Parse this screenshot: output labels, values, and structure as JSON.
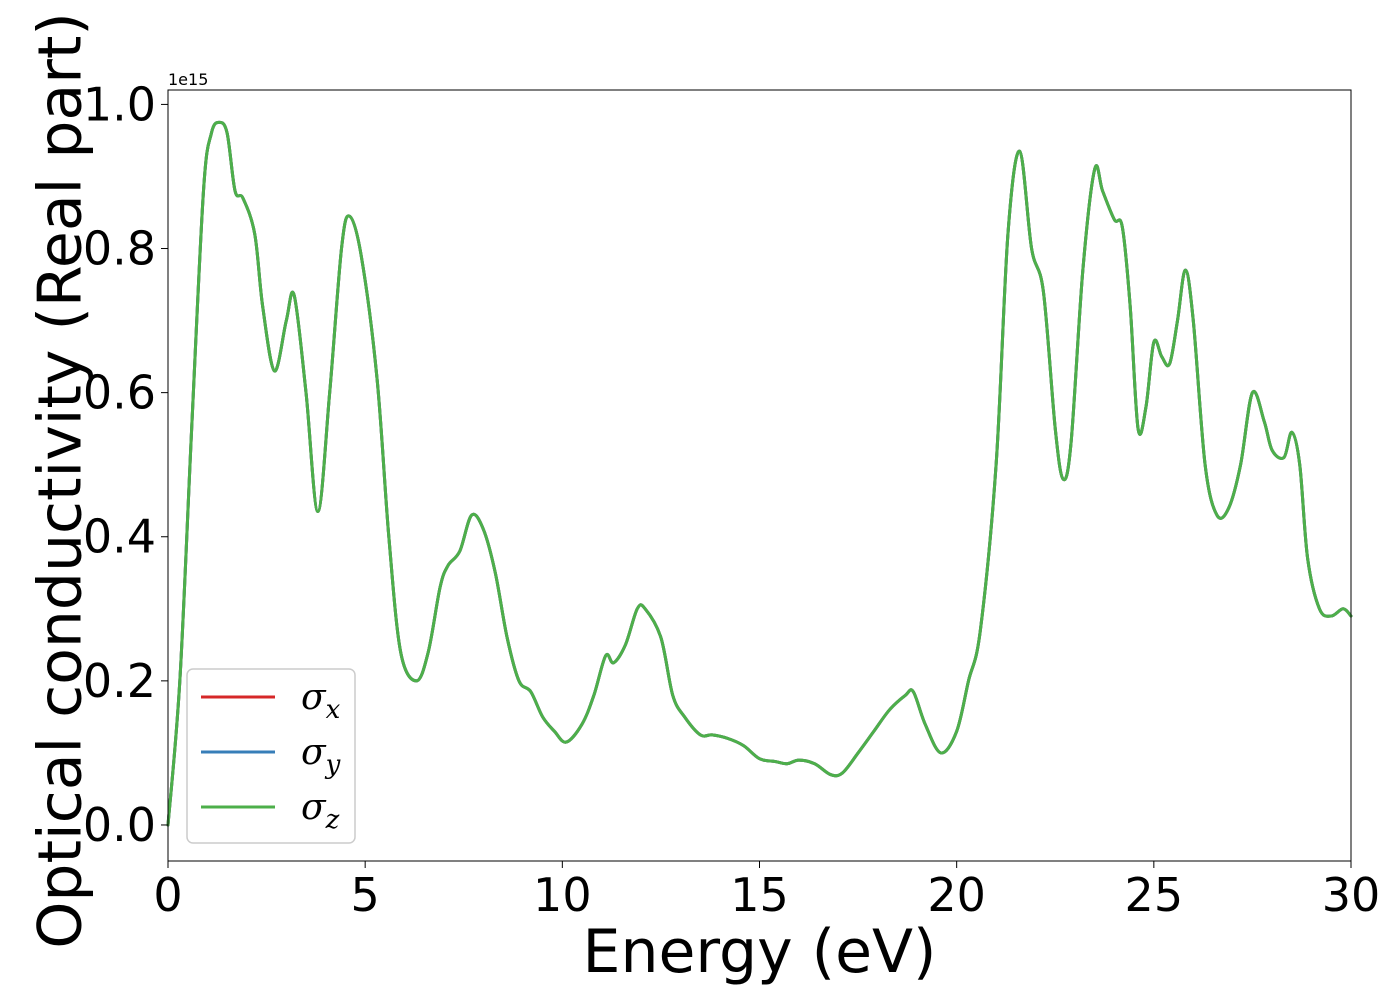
{
  "chart_data": {
    "type": "line",
    "xlabel": "Energy (eV)",
    "ylabel": "Optical conductivity (Real part)",
    "y_offset_text": "1e15",
    "xlim": [
      0,
      30
    ],
    "ylim": [
      -0.05,
      1.02
    ],
    "x_ticks": [
      0,
      5,
      10,
      15,
      20,
      25,
      30
    ],
    "x_tick_labels": [
      "0",
      "5",
      "10",
      "15",
      "20",
      "25",
      "30"
    ],
    "y_ticks": [
      0.0,
      0.2,
      0.4,
      0.6,
      0.8,
      1.0
    ],
    "y_tick_labels": [
      "0.0",
      "0.2",
      "0.4",
      "0.6",
      "0.8",
      "1.0"
    ],
    "grid": false,
    "legend_position": "lower-left",
    "colors": {
      "sigma_x": "#d62728",
      "sigma_y": "#377eb8",
      "sigma_z": "#4daf4a"
    },
    "x": [
      0,
      0.3,
      0.6,
      0.9,
      1.1,
      1.3,
      1.5,
      1.7,
      1.9,
      2.2,
      2.4,
      2.7,
      3.0,
      3.2,
      3.5,
      3.8,
      4.1,
      4.4,
      4.6,
      4.9,
      5.3,
      5.6,
      5.9,
      6.3,
      6.6,
      6.9,
      7.1,
      7.4,
      7.7,
      8.0,
      8.3,
      8.6,
      8.9,
      9.2,
      9.5,
      9.8,
      10.1,
      10.5,
      10.8,
      11.1,
      11.3,
      11.6,
      11.9,
      12.1,
      12.5,
      12.8,
      13.1,
      13.5,
      13.8,
      14.2,
      14.6,
      15.0,
      15.4,
      15.7,
      16.0,
      16.4,
      16.8,
      17.1,
      17.5,
      17.9,
      18.3,
      18.7,
      18.9,
      19.2,
      19.6,
      20.0,
      20.3,
      20.6,
      21.0,
      21.3,
      21.6,
      21.9,
      22.2,
      22.5,
      22.7,
      22.9,
      23.2,
      23.5,
      23.7,
      24.0,
      24.2,
      24.4,
      24.6,
      24.8,
      25.0,
      25.2,
      25.4,
      25.6,
      25.8,
      26.0,
      26.3,
      26.6,
      26.9,
      27.2,
      27.5,
      27.8,
      28.0,
      28.3,
      28.5,
      28.7,
      28.9,
      29.2,
      29.5,
      29.8,
      30.0
    ],
    "series": [
      {
        "name": "σx",
        "color": "#d62728",
        "values": [
          0.0,
          0.2,
          0.55,
          0.88,
          0.96,
          0.975,
          0.96,
          0.88,
          0.87,
          0.82,
          0.72,
          0.63,
          0.7,
          0.735,
          0.6,
          0.435,
          0.6,
          0.8,
          0.845,
          0.79,
          0.62,
          0.4,
          0.24,
          0.2,
          0.24,
          0.33,
          0.36,
          0.38,
          0.43,
          0.41,
          0.35,
          0.26,
          0.2,
          0.185,
          0.15,
          0.13,
          0.115,
          0.14,
          0.18,
          0.235,
          0.225,
          0.25,
          0.3,
          0.3,
          0.26,
          0.18,
          0.15,
          0.125,
          0.125,
          0.12,
          0.11,
          0.092,
          0.088,
          0.085,
          0.09,
          0.085,
          0.07,
          0.072,
          0.1,
          0.13,
          0.16,
          0.18,
          0.185,
          0.14,
          0.1,
          0.13,
          0.2,
          0.27,
          0.5,
          0.82,
          0.935,
          0.8,
          0.74,
          0.55,
          0.48,
          0.53,
          0.77,
          0.91,
          0.88,
          0.84,
          0.83,
          0.72,
          0.55,
          0.58,
          0.67,
          0.65,
          0.64,
          0.7,
          0.77,
          0.7,
          0.5,
          0.43,
          0.44,
          0.5,
          0.6,
          0.56,
          0.52,
          0.51,
          0.545,
          0.5,
          0.37,
          0.3,
          0.29,
          0.3,
          0.29
        ]
      },
      {
        "name": "σy",
        "color": "#377eb8",
        "values": [
          0.0,
          0.2,
          0.55,
          0.88,
          0.96,
          0.975,
          0.96,
          0.88,
          0.87,
          0.82,
          0.72,
          0.63,
          0.7,
          0.735,
          0.6,
          0.435,
          0.6,
          0.8,
          0.845,
          0.79,
          0.62,
          0.4,
          0.24,
          0.2,
          0.24,
          0.33,
          0.36,
          0.38,
          0.43,
          0.41,
          0.35,
          0.26,
          0.2,
          0.185,
          0.15,
          0.13,
          0.115,
          0.14,
          0.18,
          0.235,
          0.225,
          0.25,
          0.3,
          0.3,
          0.26,
          0.18,
          0.15,
          0.125,
          0.125,
          0.12,
          0.11,
          0.092,
          0.088,
          0.085,
          0.09,
          0.085,
          0.07,
          0.072,
          0.1,
          0.13,
          0.16,
          0.18,
          0.185,
          0.14,
          0.1,
          0.13,
          0.2,
          0.27,
          0.5,
          0.82,
          0.935,
          0.8,
          0.74,
          0.55,
          0.48,
          0.53,
          0.77,
          0.91,
          0.88,
          0.84,
          0.83,
          0.72,
          0.55,
          0.58,
          0.67,
          0.65,
          0.64,
          0.7,
          0.77,
          0.7,
          0.5,
          0.43,
          0.44,
          0.5,
          0.6,
          0.56,
          0.52,
          0.51,
          0.545,
          0.5,
          0.37,
          0.3,
          0.29,
          0.3,
          0.29
        ]
      },
      {
        "name": "σz",
        "color": "#4daf4a",
        "values": [
          0.0,
          0.2,
          0.55,
          0.88,
          0.96,
          0.975,
          0.96,
          0.88,
          0.87,
          0.82,
          0.72,
          0.63,
          0.7,
          0.735,
          0.6,
          0.435,
          0.6,
          0.8,
          0.845,
          0.79,
          0.62,
          0.4,
          0.24,
          0.2,
          0.24,
          0.33,
          0.36,
          0.38,
          0.43,
          0.41,
          0.35,
          0.26,
          0.2,
          0.185,
          0.15,
          0.13,
          0.115,
          0.14,
          0.18,
          0.235,
          0.225,
          0.25,
          0.3,
          0.3,
          0.26,
          0.18,
          0.15,
          0.125,
          0.125,
          0.12,
          0.11,
          0.092,
          0.088,
          0.085,
          0.09,
          0.085,
          0.07,
          0.072,
          0.1,
          0.13,
          0.16,
          0.18,
          0.185,
          0.14,
          0.1,
          0.13,
          0.2,
          0.27,
          0.5,
          0.82,
          0.935,
          0.8,
          0.74,
          0.55,
          0.48,
          0.53,
          0.77,
          0.91,
          0.88,
          0.84,
          0.83,
          0.72,
          0.55,
          0.58,
          0.67,
          0.65,
          0.64,
          0.7,
          0.77,
          0.7,
          0.5,
          0.43,
          0.44,
          0.5,
          0.6,
          0.56,
          0.52,
          0.51,
          0.545,
          0.5,
          0.37,
          0.3,
          0.29,
          0.3,
          0.29
        ]
      }
    ],
    "legend": [
      {
        "symbol": "σ",
        "sub": "x",
        "color": "#d62728"
      },
      {
        "symbol": "σ",
        "sub": "y",
        "color": "#377eb8"
      },
      {
        "symbol": "σ",
        "sub": "z",
        "color": "#4daf4a"
      }
    ]
  }
}
